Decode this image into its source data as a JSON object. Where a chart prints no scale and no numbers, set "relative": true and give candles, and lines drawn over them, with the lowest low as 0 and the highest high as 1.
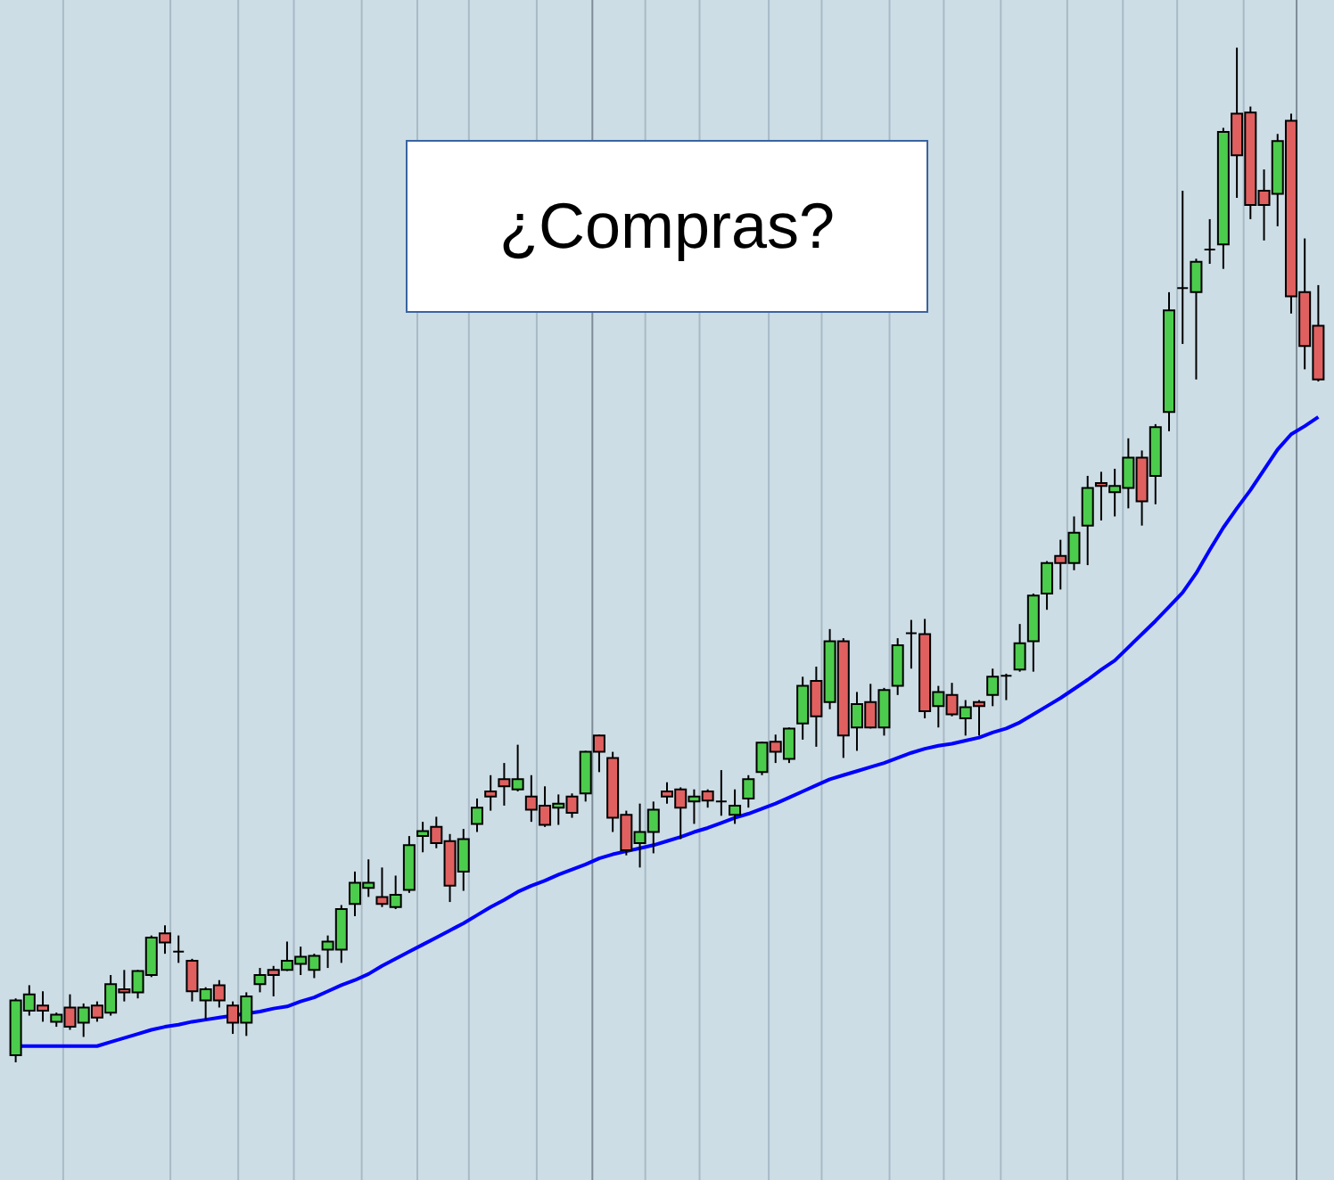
{
  "chart_data": {
    "type": "candlestick",
    "relative": true,
    "annotations": [
      "¿Compras?"
    ],
    "categories": [
      null,
      null,
      null,
      null,
      null,
      null,
      null,
      null,
      null,
      null,
      null,
      null,
      null,
      null,
      null,
      null,
      null,
      null,
      null,
      null,
      null,
      null,
      null,
      null,
      null,
      null,
      null,
      null,
      null,
      null,
      null,
      null,
      null,
      null,
      null,
      null,
      null,
      null,
      null,
      null,
      null,
      null,
      null,
      null,
      null,
      null,
      null,
      null,
      null,
      null,
      null,
      null,
      null,
      null,
      null,
      null,
      null,
      null,
      null,
      null,
      null,
      null,
      null,
      null,
      null,
      null,
      null,
      null,
      null,
      null,
      null,
      null,
      null,
      null,
      null,
      null,
      null,
      null,
      null,
      null,
      null,
      null,
      null,
      null,
      null,
      null,
      null,
      null,
      null,
      null,
      null,
      null,
      null,
      null,
      null,
      null,
      null
    ],
    "ohlc": [
      [
        0.007,
        0.063,
        0,
        0.061
      ],
      [
        0.051,
        0.076,
        0.046,
        0.067
      ],
      [
        0.056,
        0.07,
        0.04,
        0.051
      ],
      [
        0.04,
        0.049,
        0.035,
        0.047
      ],
      [
        0.054,
        0.067,
        0.032,
        0.035
      ],
      [
        0.039,
        0.058,
        0.025,
        0.054
      ],
      [
        0.056,
        0.06,
        0.04,
        0.044
      ],
      [
        0.049,
        0.086,
        0.046,
        0.077
      ],
      [
        0.072,
        0.091,
        0.06,
        0.069
      ],
      [
        0.069,
        0.091,
        0.063,
        0.09
      ],
      [
        0.086,
        0.125,
        0.084,
        0.123
      ],
      [
        0.127,
        0.135,
        0.107,
        0.118
      ],
      [
        0.109,
        0.125,
        0.098,
        0.109
      ],
      [
        0.1,
        0.102,
        0.06,
        0.07
      ],
      [
        0.061,
        0.074,
        0.042,
        0.072
      ],
      [
        0.076,
        0.081,
        0.054,
        0.061
      ],
      [
        0.056,
        0.06,
        0.028,
        0.039
      ],
      [
        0.039,
        0.069,
        0.026,
        0.065
      ],
      [
        0.077,
        0.093,
        0.069,
        0.086
      ],
      [
        0.091,
        0.095,
        0.065,
        0.086
      ],
      [
        0.091,
        0.119,
        0.09,
        0.1
      ],
      [
        0.097,
        0.114,
        0.086,
        0.104
      ],
      [
        0.091,
        0.107,
        0.083,
        0.105
      ],
      [
        0.111,
        0.125,
        0.093,
        0.119
      ],
      [
        0.111,
        0.155,
        0.098,
        0.151
      ],
      [
        0.156,
        0.188,
        0.144,
        0.177
      ],
      [
        0.172,
        0.2,
        0.163,
        0.177
      ],
      [
        0.163,
        0.192,
        0.153,
        0.156
      ],
      [
        0.153,
        0.184,
        0.151,
        0.165
      ],
      [
        0.17,
        0.223,
        0.167,
        0.214
      ],
      [
        0.223,
        0.237,
        0.207,
        0.228
      ],
      [
        0.232,
        0.242,
        0.211,
        0.216
      ],
      [
        0.218,
        0.225,
        0.158,
        0.174
      ],
      [
        0.188,
        0.23,
        0.169,
        0.22
      ],
      [
        0.235,
        0.26,
        0.227,
        0.251
      ],
      [
        0.267,
        0.283,
        0.248,
        0.262
      ],
      [
        0.279,
        0.295,
        0.253,
        0.272
      ],
      [
        0.269,
        0.313,
        0.267,
        0.279
      ],
      [
        0.262,
        0.283,
        0.237,
        0.249
      ],
      [
        0.253,
        0.272,
        0.232,
        0.234
      ],
      [
        0.251,
        0.264,
        0.234,
        0.255
      ],
      [
        0.262,
        0.265,
        0.241,
        0.246
      ],
      [
        0.265,
        0.307,
        0.257,
        0.306
      ],
      [
        0.322,
        0.323,
        0.286,
        0.306
      ],
      [
        0.3,
        0.306,
        0.227,
        0.241
      ],
      [
        0.244,
        0.248,
        0.204,
        0.209
      ],
      [
        0.216,
        0.255,
        0.192,
        0.227
      ],
      [
        0.227,
        0.257,
        0.206,
        0.249
      ],
      [
        0.267,
        0.276,
        0.255,
        0.262
      ],
      [
        0.269,
        0.271,
        0.22,
        0.251
      ],
      [
        0.257,
        0.269,
        0.235,
        0.262
      ],
      [
        0.267,
        0.269,
        0.251,
        0.258
      ],
      [
        0.257,
        0.288,
        0.243,
        0.257
      ],
      [
        0.244,
        0.269,
        0.235,
        0.253
      ],
      [
        0.26,
        0.283,
        0.251,
        0.279
      ],
      [
        0.286,
        0.316,
        0.283,
        0.315
      ],
      [
        0.316,
        0.323,
        0.295,
        0.306
      ],
      [
        0.299,
        0.33,
        0.295,
        0.329
      ],
      [
        0.334,
        0.38,
        0.318,
        0.371
      ],
      [
        0.376,
        0.39,
        0.311,
        0.341
      ],
      [
        0.355,
        0.427,
        0.348,
        0.415
      ],
      [
        0.415,
        0.418,
        0.3,
        0.322
      ],
      [
        0.33,
        0.365,
        0.307,
        0.353
      ],
      [
        0.355,
        0.373,
        0.329,
        0.33
      ],
      [
        0.33,
        0.369,
        0.322,
        0.367
      ],
      [
        0.371,
        0.418,
        0.362,
        0.411
      ],
      [
        0.423,
        0.436,
        0.388,
        0.423
      ],
      [
        0.422,
        0.437,
        0.339,
        0.346
      ],
      [
        0.351,
        0.371,
        0.33,
        0.365
      ],
      [
        0.362,
        0.374,
        0.341,
        0.343
      ],
      [
        0.339,
        0.357,
        0.322,
        0.35
      ],
      [
        0.355,
        0.357,
        0.322,
        0.351
      ],
      [
        0.362,
        0.388,
        0.351,
        0.38
      ],
      [
        0.381,
        0.383,
        0.357,
        0.381
      ],
      [
        0.387,
        0.432,
        0.385,
        0.413
      ],
      [
        0.415,
        0.462,
        0.385,
        0.46
      ],
      [
        0.462,
        0.494,
        0.446,
        0.492
      ],
      [
        0.499,
        0.515,
        0.466,
        0.492
      ],
      [
        0.492,
        0.538,
        0.485,
        0.522
      ],
      [
        0.529,
        0.578,
        0.49,
        0.566
      ],
      [
        0.571,
        0.582,
        0.534,
        0.568
      ],
      [
        0.562,
        0.585,
        0.538,
        0.568
      ],
      [
        0.566,
        0.615,
        0.546,
        0.596
      ],
      [
        0.596,
        0.603,
        0.529,
        0.553
      ],
      [
        0.578,
        0.629,
        0.55,
        0.626
      ],
      [
        0.641,
        0.759,
        0.622,
        0.741
      ],
      [
        0.763,
        0.859,
        0.708,
        0.763
      ],
      [
        0.759,
        0.792,
        0.673,
        0.789
      ],
      [
        0.801,
        0.831,
        0.787,
        0.801
      ],
      [
        0.806,
        0.921,
        0.782,
        0.917
      ],
      [
        0.935,
        1,
        0.852,
        0.894
      ],
      [
        0.936,
        0.942,
        0.831,
        0.845
      ],
      [
        0.859,
        0.88,
        0.81,
        0.845
      ],
      [
        0.856,
        0.915,
        0.824,
        0.908
      ],
      [
        0.928,
        0.935,
        0.738,
        0.755
      ],
      [
        0.759,
        0.812,
        0.683,
        0.706
      ],
      [
        0.726,
        0.766,
        0.671,
        0.673
      ]
    ],
    "colors": [
      "#4ccc4c",
      "#4ccc4c",
      "#e06060",
      "#4ccc4c",
      "#e06060",
      "#4ccc4c",
      "#e06060",
      "#4ccc4c",
      "#e06060",
      "#4ccc4c",
      "#4ccc4c",
      "#e06060",
      "#000000",
      "#e06060",
      "#4ccc4c",
      "#e06060",
      "#e06060",
      "#4ccc4c",
      "#4ccc4c",
      "#e06060",
      "#4ccc4c",
      "#4ccc4c",
      "#4ccc4c",
      "#4ccc4c",
      "#4ccc4c",
      "#4ccc4c",
      "#4ccc4c",
      "#e06060",
      "#4ccc4c",
      "#4ccc4c",
      "#4ccc4c",
      "#e06060",
      "#e06060",
      "#4ccc4c",
      "#4ccc4c",
      "#e06060",
      "#e06060",
      "#4ccc4c",
      "#e06060",
      "#e06060",
      "#4ccc4c",
      "#e06060",
      "#4ccc4c",
      "#e06060",
      "#e06060",
      "#e06060",
      "#4ccc4c",
      "#4ccc4c",
      "#e06060",
      "#e06060",
      "#4ccc4c",
      "#e06060",
      "#000000",
      "#4ccc4c",
      "#4ccc4c",
      "#4ccc4c",
      "#e06060",
      "#4ccc4c",
      "#4ccc4c",
      "#e06060",
      "#4ccc4c",
      "#e06060",
      "#4ccc4c",
      "#e06060",
      "#4ccc4c",
      "#4ccc4c",
      "#000000",
      "#e06060",
      "#4ccc4c",
      "#e06060",
      "#4ccc4c",
      "#e06060",
      "#4ccc4c",
      "#000000",
      "#4ccc4c",
      "#4ccc4c",
      "#4ccc4c",
      "#e06060",
      "#4ccc4c",
      "#4ccc4c",
      "#e06060",
      "#4ccc4c",
      "#4ccc4c",
      "#e06060",
      "#4ccc4c",
      "#4ccc4c",
      "#000000",
      "#4ccc4c",
      "#000000",
      "#4ccc4c",
      "#e06060",
      "#e06060",
      "#e06060",
      "#4ccc4c",
      "#e06060",
      "#e06060",
      "#e06060"
    ],
    "series": [
      {
        "type": "line",
        "color": "#0000ff",
        "values": [
          0.016,
          0.016,
          0.016,
          0.016,
          0.016,
          0.016,
          0.016,
          0.02,
          0.024,
          0.028,
          0.032,
          0.035,
          0.037,
          0.04,
          0.042,
          0.044,
          0.046,
          0.048,
          0.05,
          0.053,
          0.055,
          0.06,
          0.064,
          0.07,
          0.076,
          0.081,
          0.087,
          0.095,
          0.102,
          0.109,
          0.116,
          0.123,
          0.13,
          0.137,
          0.145,
          0.153,
          0.16,
          0.168,
          0.174,
          0.179,
          0.185,
          0.19,
          0.195,
          0.201,
          0.205,
          0.208,
          0.211,
          0.214,
          0.218,
          0.222,
          0.227,
          0.231,
          0.236,
          0.241,
          0.245,
          0.25,
          0.255,
          0.261,
          0.267,
          0.273,
          0.279,
          0.283,
          0.287,
          0.291,
          0.295,
          0.3,
          0.305,
          0.309,
          0.312,
          0.314,
          0.317,
          0.32,
          0.325,
          0.329,
          0.335,
          0.343,
          0.351,
          0.359,
          0.368,
          0.377,
          0.387,
          0.396,
          0.409,
          0.422,
          0.435,
          0.449,
          0.463,
          0.482,
          0.505,
          0.527,
          0.546,
          0.564,
          0.584,
          0.604,
          0.619,
          0.627,
          0.636
        ]
      }
    ]
  }
}
